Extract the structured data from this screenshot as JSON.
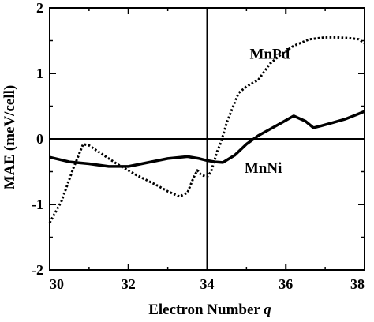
{
  "chart_data": {
    "type": "line",
    "xlabel": "Electron Number",
    "xlabel_var": "q",
    "ylabel": "MAE (meV/cell)",
    "xlim": [
      30,
      38
    ],
    "ylim": [
      -2,
      2
    ],
    "xticks": [
      "30",
      "32",
      "34",
      "36",
      "38"
    ],
    "yticks": [
      "-2",
      "-1",
      "0",
      "1",
      "2"
    ],
    "reference_lines": {
      "x": 34,
      "y": 0
    },
    "series": [
      {
        "name": "MnPd",
        "style": "dotted",
        "color": "#000000",
        "x": [
          30.0,
          30.3,
          30.6,
          30.85,
          31.0,
          31.3,
          31.7,
          32.2,
          32.7,
          33.0,
          33.3,
          33.5,
          33.65,
          33.75,
          33.85,
          34.0,
          34.1,
          34.25,
          34.35,
          34.5,
          34.65,
          34.8,
          35.0,
          35.3,
          35.6,
          35.9,
          36.2,
          36.6,
          37.0,
          37.3,
          37.6,
          37.85,
          38.0
        ],
        "values": [
          -1.28,
          -0.95,
          -0.45,
          -0.08,
          -0.1,
          -0.22,
          -0.38,
          -0.55,
          -0.7,
          -0.8,
          -0.88,
          -0.82,
          -0.6,
          -0.48,
          -0.55,
          -0.58,
          -0.5,
          -0.2,
          -0.05,
          0.25,
          0.48,
          0.7,
          0.8,
          0.9,
          1.15,
          1.3,
          1.42,
          1.52,
          1.55,
          1.55,
          1.54,
          1.52,
          1.46
        ]
      },
      {
        "name": "MnNi",
        "style": "solid",
        "color": "#000000",
        "x": [
          30.0,
          30.5,
          31.0,
          31.5,
          32.0,
          32.5,
          33.0,
          33.5,
          33.8,
          34.0,
          34.2,
          34.4,
          34.7,
          35.0,
          35.3,
          35.6,
          35.9,
          36.2,
          36.5,
          36.7,
          36.9,
          37.2,
          37.5,
          37.8,
          38.0
        ],
        "values": [
          -0.28,
          -0.35,
          -0.38,
          -0.42,
          -0.42,
          -0.36,
          -0.3,
          -0.27,
          -0.3,
          -0.33,
          -0.35,
          -0.36,
          -0.25,
          -0.08,
          0.05,
          0.15,
          0.25,
          0.35,
          0.27,
          0.17,
          0.2,
          0.25,
          0.3,
          0.37,
          0.42
        ]
      }
    ]
  }
}
